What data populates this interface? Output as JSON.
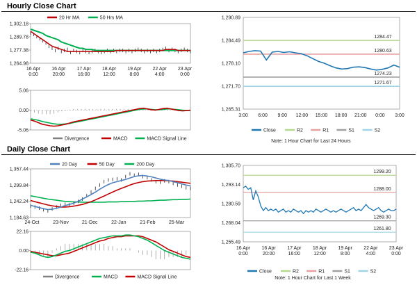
{
  "hourly": {
    "title": "Hourly Close Chart",
    "ma": {
      "type": "line",
      "legend": [
        {
          "name": "20 Hr MA",
          "color": "#c00000"
        },
        {
          "name": "50 Hrs MA",
          "color": "#00b050"
        }
      ],
      "yticks": [
        "1,302.18",
        "1,289.78",
        "1,277.38",
        "1,264.98"
      ],
      "yrange": [
        1264.98,
        1302.18
      ],
      "xticks": [
        "16 Apr\n0:00",
        "16 Apr\n20:00",
        "17 Apr\n16:00",
        "18 Apr\n12:00",
        "19 Apr\n8:00",
        "22 Apr\n4:00",
        "23 Apr\n0:00"
      ],
      "price_close": [
        1293,
        1292,
        1290,
        1288,
        1286,
        1284,
        1281,
        1279,
        1277,
        1279,
        1276,
        1277,
        1278,
        1275,
        1277,
        1276,
        1275,
        1277,
        1276,
        1275,
        1276,
        1277,
        1276,
        1275,
        1276,
        1277,
        1276,
        1277,
        1276,
        1277,
        1277,
        1276,
        1277,
        1276,
        1277,
        1278,
        1277,
        1276,
        1277,
        1276,
        1277,
        1276,
        1277,
        1278,
        1279,
        1277,
        1278,
        1277,
        1276,
        1277,
        1278,
        1277,
        1276
      ],
      "ma20": [
        1295,
        1293,
        1291,
        1289,
        1287,
        1285,
        1283,
        1281,
        1280,
        1279,
        1278,
        1277,
        1276,
        1276,
        1276,
        1276,
        1276,
        1276,
        1276,
        1276,
        1276,
        1276,
        1276,
        1276,
        1276,
        1276,
        1276,
        1276,
        1277,
        1277,
        1277,
        1277,
        1277,
        1277,
        1277,
        1277,
        1277,
        1277,
        1277,
        1277,
        1277,
        1277,
        1277,
        1277,
        1278,
        1278,
        1278,
        1278,
        1277,
        1277,
        1277,
        1277,
        1277
      ],
      "ma50": [
        1297,
        1296,
        1295,
        1294,
        1293,
        1291,
        1290,
        1289,
        1288,
        1287,
        1285,
        1284,
        1283,
        1282,
        1281,
        1280,
        1279,
        1279,
        1278,
        1278,
        1278,
        1277,
        1277,
        1277,
        1277,
        1277,
        1277,
        1277,
        1277,
        1277,
        1277,
        1277,
        1277,
        1277,
        1277,
        1277,
        1277,
        1277,
        1277,
        1277,
        1277,
        1277,
        1277,
        1277,
        1277,
        1277,
        1277,
        1277,
        1277,
        1277,
        1277,
        1277,
        1277
      ]
    },
    "macd": {
      "type": "line",
      "legend": [
        {
          "name": "Divergence",
          "color": "#808080"
        },
        {
          "name": "MACD",
          "color": "#c00000"
        },
        {
          "name": "MACD Signal Line",
          "color": "#00b050"
        }
      ],
      "yticks": [
        "5.06",
        "0.00",
        "-5.06"
      ],
      "yrange": [
        -5.06,
        5.06
      ],
      "macd": [
        -2.5,
        -2.8,
        -3.2,
        -3.6,
        -3.8,
        -4.0,
        -4.1,
        -4.0,
        -3.8,
        -3.6,
        -3.3,
        -3.0,
        -2.8,
        -2.6,
        -2.4,
        -2.2,
        -2.0,
        -1.8,
        -1.6,
        -1.4,
        -1.2,
        -1.0,
        -0.8,
        -0.6,
        -0.4,
        -0.2,
        0.0,
        0.2,
        0.4,
        0.5,
        0.3,
        0.1,
        0.0,
        0.2,
        0.4,
        0.5,
        0.3,
        0.1,
        -0.1,
        -0.2,
        -0.1,
        0.0
      ],
      "signal": [
        -2.2,
        -2.4,
        -2.6,
        -2.9,
        -3.1,
        -3.3,
        -3.5,
        -3.6,
        -3.6,
        -3.5,
        -3.4,
        -3.2,
        -3.0,
        -2.8,
        -2.6,
        -2.4,
        -2.2,
        -2.0,
        -1.8,
        -1.6,
        -1.4,
        -1.2,
        -1.0,
        -0.8,
        -0.6,
        -0.4,
        -0.2,
        0.0,
        0.2,
        0.3,
        0.3,
        0.2,
        0.1,
        0.1,
        0.2,
        0.3,
        0.3,
        0.2,
        0.1,
        0.0,
        -0.1,
        -0.1
      ]
    },
    "hour": {
      "type": "line",
      "yticks": [
        "1,290.89",
        "1,284.49",
        "1,278.10",
        "1,271.70",
        "1,265.31"
      ],
      "yrange": [
        1265.31,
        1290.89
      ],
      "xticks": [
        "3:00",
        "6:00",
        "9:00",
        "12:00",
        "15:00",
        "18:00",
        "21:00",
        "0:00",
        "3:00"
      ],
      "close": [
        1281,
        1281.4,
        1281.6,
        1281.5,
        1279,
        1281.2,
        1281.4,
        1281.1,
        1281.3,
        1281.0,
        1280.8,
        1280.2,
        1279.4,
        1278.6,
        1278.1,
        1277.4,
        1276.8,
        1276.5,
        1276.6,
        1277.0,
        1277.1,
        1276.9,
        1276.5,
        1276.2,
        1276.4,
        1276.8,
        1277.6,
        1277.0
      ],
      "levels": {
        "R2": 1284.47,
        "R1": 1280.63,
        "S1": 1274.23,
        "S2": 1271.67
      },
      "level_labels": [
        "1284.47",
        "1280.63",
        "1274.23",
        "1271.67"
      ],
      "legend": [
        {
          "name": "Close",
          "color": "#1f77b4"
        },
        {
          "name": "R2",
          "color": "#b4d88e"
        },
        {
          "name": "R1",
          "color": "#e6a0a0"
        },
        {
          "name": "S1",
          "color": "#a0a0a0"
        },
        {
          "name": "S2",
          "color": "#9fd3e6"
        }
      ],
      "note": "Note: 1 Hour Chart for Last 24 Hours"
    }
  },
  "daily": {
    "title": "Daily Close Chart",
    "ma": {
      "type": "line",
      "legend": [
        {
          "name": "20 Day",
          "color": "#4f81bd"
        },
        {
          "name": "50 Day",
          "color": "#c00000"
        },
        {
          "name": "200 Day",
          "color": "#00b050"
        }
      ],
      "yticks": [
        "1,357.44",
        "1,299.84",
        "1,242.24",
        "1,184.63"
      ],
      "yrange": [
        1184.63,
        1357.44
      ],
      "xticks": [
        "24-Oct",
        "23-Nov",
        "21-Dec",
        "22-Jan",
        "21-Feb",
        "25-Mar"
      ],
      "price": [
        1225,
        1222,
        1218,
        1212,
        1208,
        1215,
        1222,
        1228,
        1232,
        1230,
        1235,
        1242,
        1250,
        1262,
        1275,
        1288,
        1300,
        1312,
        1318,
        1320,
        1322,
        1318,
        1330,
        1340,
        1335,
        1338,
        1330,
        1326,
        1318,
        1312,
        1310,
        1315,
        1312,
        1306,
        1300,
        1296,
        1290,
        1288
      ],
      "d20": [
        1228,
        1224,
        1220,
        1216,
        1213,
        1214,
        1217,
        1222,
        1227,
        1231,
        1236,
        1242,
        1250,
        1258,
        1266,
        1275,
        1285,
        1294,
        1302,
        1308,
        1312,
        1316,
        1320,
        1325,
        1330,
        1333,
        1334,
        1332,
        1329,
        1325,
        1321,
        1318,
        1316,
        1312,
        1308,
        1304,
        1300,
        1297
      ],
      "d50": [
        1245,
        1241,
        1237,
        1233,
        1229,
        1226,
        1224,
        1222,
        1222,
        1223,
        1225,
        1228,
        1231,
        1236,
        1241,
        1247,
        1254,
        1261,
        1268,
        1275,
        1282,
        1288,
        1294,
        1300,
        1305,
        1309,
        1312,
        1314,
        1315,
        1316,
        1316,
        1316,
        1315,
        1314,
        1312,
        1310,
        1308,
        1306
      ],
      "d200": [
        1262,
        1259,
        1256,
        1253,
        1250,
        1248,
        1246,
        1244,
        1242,
        1241,
        1240,
        1240,
        1239,
        1239,
        1239,
        1239,
        1239,
        1239,
        1240,
        1240,
        1240,
        1241,
        1241,
        1242,
        1242,
        1243,
        1243,
        1244,
        1244,
        1245,
        1246,
        1246,
        1247,
        1248,
        1248,
        1249,
        1249,
        1250
      ]
    },
    "macd": {
      "type": "line",
      "legend": [
        {
          "name": "Divergence",
          "color": "#808080"
        },
        {
          "name": "MACD",
          "color": "#00b050"
        },
        {
          "name": "MACD Signal Line",
          "color": "#c00000"
        }
      ],
      "yticks": [
        "22.16",
        "0.00",
        "-22.16"
      ],
      "yrange": [
        -22.16,
        22.16
      ],
      "macd": [
        -2,
        -3,
        -5,
        -7,
        -8,
        -7,
        -5,
        -3,
        -1,
        0,
        2,
        4,
        6,
        8,
        10,
        12,
        14,
        15,
        16,
        17,
        17,
        17,
        18,
        18,
        17,
        16,
        14,
        12,
        9,
        6,
        3,
        0,
        -2,
        -4,
        -6,
        -8,
        -9,
        -10
      ],
      "signal": [
        -1,
        -2,
        -3,
        -4,
        -5,
        -6,
        -6,
        -5,
        -4,
        -3,
        -1,
        1,
        3,
        5,
        7,
        9,
        11,
        12,
        14,
        15,
        16,
        16,
        17,
        17,
        17,
        17,
        16,
        14,
        12,
        10,
        7,
        4,
        1,
        -1,
        -3,
        -5,
        -7,
        -8
      ]
    },
    "week": {
      "type": "line",
      "yticks": [
        "1,305.70",
        "1,293.14",
        "1,280.59",
        "1,268.04",
        "1,255.49"
      ],
      "yrange": [
        1255.49,
        1305.7
      ],
      "xticks": [
        "16 Apr\n0:00",
        "16 Apr\n20:00",
        "17 Apr\n16:00",
        "18 Apr\n12:00",
        "19 Apr\n8:00",
        "22 Apr\n4:00",
        "23 Apr\n0:00"
      ],
      "close": [
        1291,
        1292,
        1290,
        1291,
        1283,
        1289,
        1285,
        1279,
        1276,
        1278,
        1276,
        1277,
        1276,
        1277,
        1275,
        1276,
        1277,
        1275,
        1276,
        1275,
        1277,
        1276,
        1275,
        1276,
        1274,
        1276,
        1275,
        1276,
        1275,
        1277,
        1276,
        1275,
        1276,
        1277,
        1276,
        1275,
        1276,
        1275,
        1276,
        1277,
        1276,
        1275,
        1276,
        1277,
        1278,
        1276,
        1277,
        1276,
        1278,
        1280,
        1278,
        1277,
        1276,
        1277,
        1278,
        1276,
        1275,
        1276,
        1277,
        1276,
        1276,
        1277
      ],
      "levels": {
        "R2": 1299.2,
        "R1": 1288.0,
        "S1": 1269.3,
        "S2": 1261.8
      },
      "level_labels": [
        "1299.20",
        "1288.00",
        "1269.30",
        "1261.80"
      ],
      "legend": [
        {
          "name": "Close",
          "color": "#1f77b4"
        },
        {
          "name": "R2",
          "color": "#b4d88e"
        },
        {
          "name": "R1",
          "color": "#e6a0a0"
        },
        {
          "name": "S1",
          "color": "#a0a0a0"
        },
        {
          "name": "S2",
          "color": "#9fd3e6"
        }
      ],
      "note": "Note: 1 Hour Chart for Last 1 Week"
    }
  }
}
